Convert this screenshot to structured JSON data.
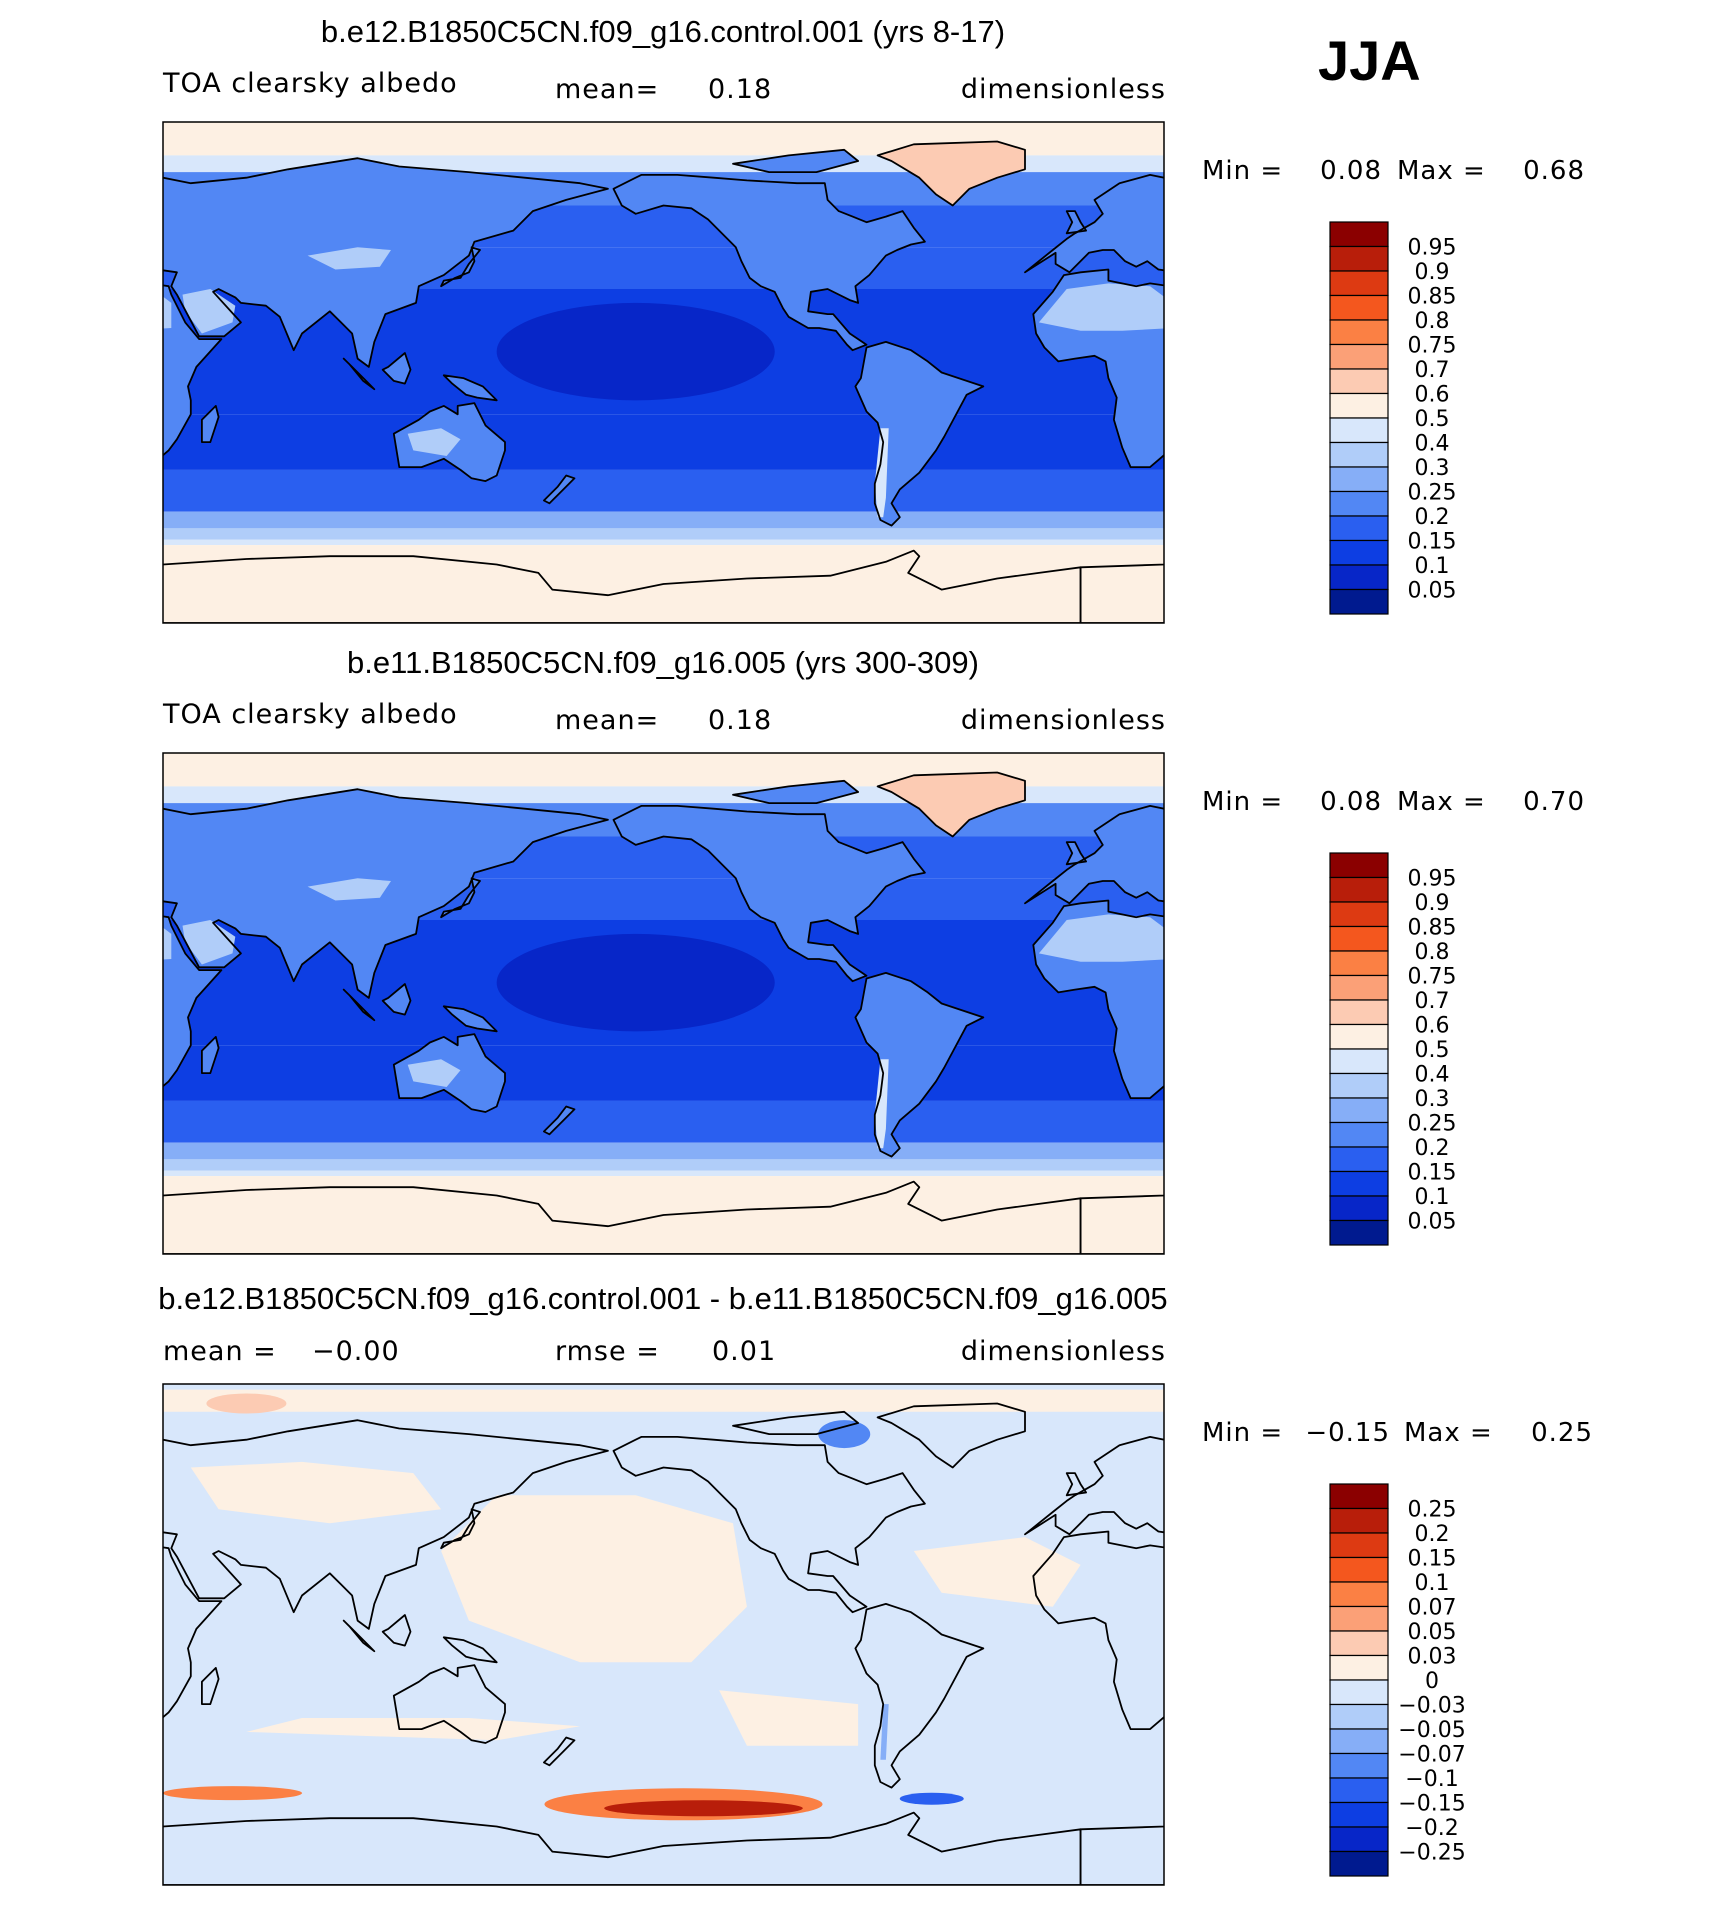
{
  "season": "JJA",
  "chart_data": [
    {
      "type": "heatmap",
      "title": "b.e12.B1850C5CN.f09_g16.control.001 (yrs 8-17)",
      "variable": "TOA clearsky albedo",
      "mean_label": "mean=",
      "mean_value": "0.18",
      "units": "dimensionless",
      "min_label": "Min =",
      "min_value": "0.08",
      "max_label": "Max =",
      "max_value": "0.68",
      "colorbar": {
        "levels": [
          "0.95",
          "0.9",
          "0.85",
          "0.8",
          "0.75",
          "0.7",
          "0.6",
          "0.5",
          "0.4",
          "0.3",
          "0.25",
          "0.2",
          "0.15",
          "0.1",
          "0.05"
        ],
        "colors": [
          "#8b0000",
          "#b81e0a",
          "#dd3a12",
          "#f4571e",
          "#fb8044",
          "#fba077",
          "#fccbb3",
          "#fdf0e3",
          "#d8e7fb",
          "#b0cdf9",
          "#86aef7",
          "#5287f4",
          "#2a5ff0",
          "#0d3ee3",
          "#0726c8",
          "#001a8f"
        ]
      },
      "field": {
        "n_polar_ice": 0.58,
        "n_high": 0.22,
        "n_mid_ocean": 0.15,
        "tropics": 0.1,
        "s_mid_ocean": 0.13,
        "s_subpolar": 0.17,
        "s_ring": 0.25,
        "s_ice": 0.55,
        "land": 0.22,
        "desert": 0.35,
        "greenland": 0.63,
        "andes": 0.45
      }
    },
    {
      "type": "heatmap",
      "title": "b.e11.B1850C5CN.f09_g16.005 (yrs 300-309)",
      "variable": "TOA clearsky albedo",
      "mean_label": "mean=",
      "mean_value": "0.18",
      "units": "dimensionless",
      "min_label": "Min =",
      "min_value": "0.08",
      "max_label": "Max =",
      "max_value": "0.70",
      "colorbar": {
        "levels": [
          "0.95",
          "0.9",
          "0.85",
          "0.8",
          "0.75",
          "0.7",
          "0.6",
          "0.5",
          "0.4",
          "0.3",
          "0.25",
          "0.2",
          "0.15",
          "0.1",
          "0.05"
        ],
        "colors": [
          "#8b0000",
          "#b81e0a",
          "#dd3a12",
          "#f4571e",
          "#fb8044",
          "#fba077",
          "#fccbb3",
          "#fdf0e3",
          "#d8e7fb",
          "#b0cdf9",
          "#86aef7",
          "#5287f4",
          "#2a5ff0",
          "#0d3ee3",
          "#0726c8",
          "#001a8f"
        ]
      },
      "field": {
        "n_polar_ice": 0.58,
        "n_high": 0.22,
        "n_mid_ocean": 0.15,
        "tropics": 0.1,
        "s_mid_ocean": 0.13,
        "s_subpolar": 0.17,
        "s_ring": 0.25,
        "s_ice": 0.55,
        "land": 0.22,
        "desert": 0.36,
        "greenland": 0.65,
        "andes": 0.45
      }
    },
    {
      "type": "heatmap",
      "title": "b.e12.B1850C5CN.f09_g16.control.001 - b.e11.B1850C5CN.f09_g16.005",
      "mean_label": "mean =",
      "mean_value": "−0.00",
      "rmse_label": "rmse =",
      "rmse_value": "0.01",
      "units": "dimensionless",
      "min_label": "Min =",
      "min_value": "−0.15",
      "max_label": "Max =",
      "max_value": "0.25",
      "colorbar": {
        "levels": [
          "0.25",
          "0.2",
          "0.15",
          "0.1",
          "0.07",
          "0.05",
          "0.03",
          "0",
          "−0.03",
          "−0.05",
          "−0.07",
          "−0.1",
          "−0.15",
          "−0.2",
          "−0.25"
        ],
        "colors": [
          "#8b0000",
          "#b81e0a",
          "#dd3a12",
          "#f4571e",
          "#fb8044",
          "#fba077",
          "#fccbb3",
          "#fdf0e3",
          "#d8e7fb",
          "#b0cdf9",
          "#86aef7",
          "#5287f4",
          "#2a5ff0",
          "#0d3ee3",
          "#0726c8",
          "#001a8f"
        ]
      },
      "field": {
        "background_pos": 0.01,
        "background_neg": -0.01,
        "so_pacific_band": 0.2,
        "so_atlantic_band": 0.08,
        "hudson_bay": -0.1,
        "drake": -0.12
      }
    }
  ]
}
